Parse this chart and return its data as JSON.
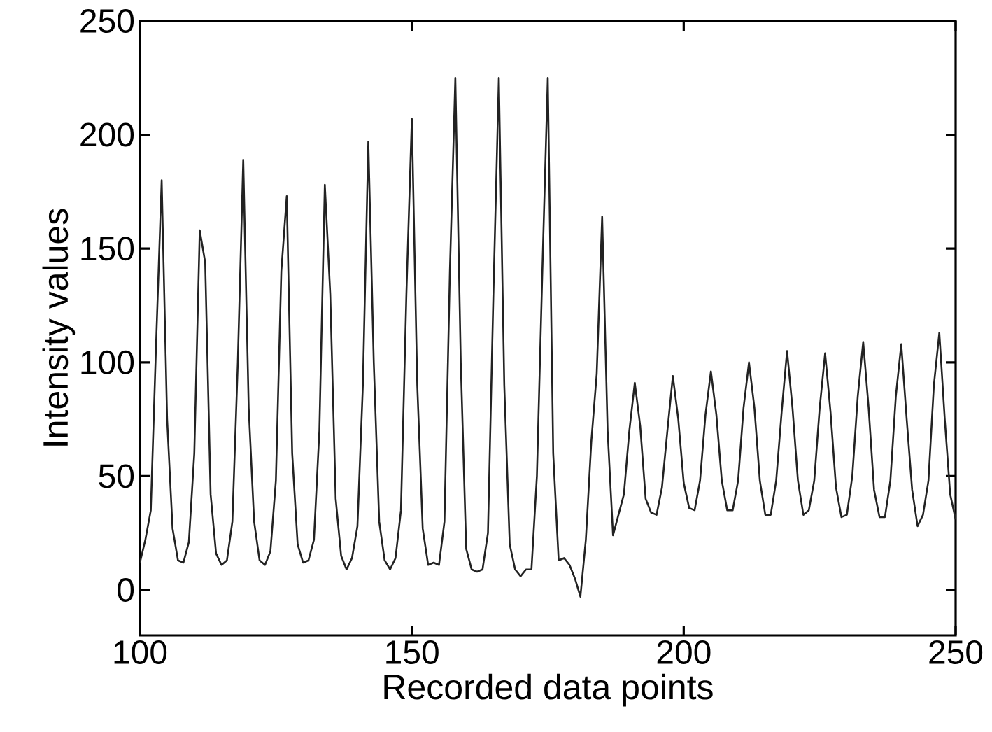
{
  "chart_data": {
    "type": "line",
    "xlabel": "Recorded data points",
    "ylabel": "Intensity values",
    "xlim": [
      100,
      250
    ],
    "ylim": [
      -20,
      250
    ],
    "xticks": [
      100,
      150,
      200,
      250
    ],
    "yticks": [
      0,
      50,
      100,
      150,
      200,
      250
    ],
    "x": [
      100,
      101,
      102,
      103,
      104,
      105,
      106,
      107,
      108,
      109,
      110,
      111,
      112,
      113,
      114,
      115,
      116,
      117,
      118,
      119,
      120,
      121,
      122,
      123,
      124,
      125,
      126,
      127,
      128,
      129,
      130,
      131,
      132,
      133,
      134,
      135,
      136,
      137,
      138,
      139,
      140,
      141,
      142,
      143,
      144,
      145,
      146,
      147,
      148,
      149,
      150,
      151,
      152,
      153,
      154,
      155,
      156,
      157,
      158,
      159,
      160,
      161,
      162,
      163,
      164,
      165,
      166,
      167,
      168,
      169,
      170,
      171,
      172,
      173,
      174,
      175,
      176,
      177,
      178,
      179,
      180,
      181,
      182,
      183,
      184,
      185,
      186,
      187,
      188,
      189,
      190,
      191,
      192,
      193,
      194,
      195,
      196,
      197,
      198,
      199,
      200,
      201,
      202,
      203,
      204,
      205,
      206,
      207,
      208,
      209,
      210,
      211,
      212,
      213,
      214,
      215,
      216,
      217,
      218,
      219,
      220,
      221,
      222,
      223,
      224,
      225,
      226,
      227,
      228,
      229,
      230,
      231,
      232,
      233,
      234,
      235,
      236,
      237,
      238,
      239,
      240,
      241,
      242,
      243,
      244,
      245,
      246,
      247,
      248,
      249,
      250
    ],
    "series": [
      {
        "color": "#222222",
        "values": [
          12,
          22,
          35,
          110,
          180,
          75,
          27,
          13,
          12,
          21,
          60,
          158,
          144,
          42,
          16,
          11,
          13,
          30,
          100,
          189,
          80,
          30,
          13,
          11,
          17,
          48,
          140,
          173,
          60,
          20,
          12,
          13,
          22,
          70,
          178,
          130,
          40,
          15,
          9,
          14,
          28,
          90,
          197,
          100,
          30,
          13,
          9,
          14,
          35,
          130,
          207,
          90,
          27,
          11,
          12,
          11,
          30,
          140,
          225,
          100,
          18,
          9,
          8,
          9,
          25,
          130,
          225,
          90,
          20,
          9,
          6,
          9,
          9,
          50,
          140,
          225,
          60,
          13,
          14,
          11,
          5,
          -3,
          22,
          65,
          95,
          164,
          70,
          24,
          33,
          42,
          70,
          91,
          72,
          40,
          34,
          33,
          45,
          70,
          94,
          75,
          47,
          36,
          35,
          48,
          77,
          96,
          77,
          48,
          35,
          35,
          48,
          80,
          100,
          80,
          48,
          33,
          33,
          48,
          78,
          105,
          80,
          48,
          33,
          35,
          48,
          80,
          104,
          78,
          45,
          32,
          33,
          50,
          85,
          109,
          80,
          44,
          32,
          32,
          48,
          85,
          108,
          75,
          44,
          28,
          33,
          48,
          90,
          113,
          75,
          42,
          31
        ]
      }
    ]
  }
}
